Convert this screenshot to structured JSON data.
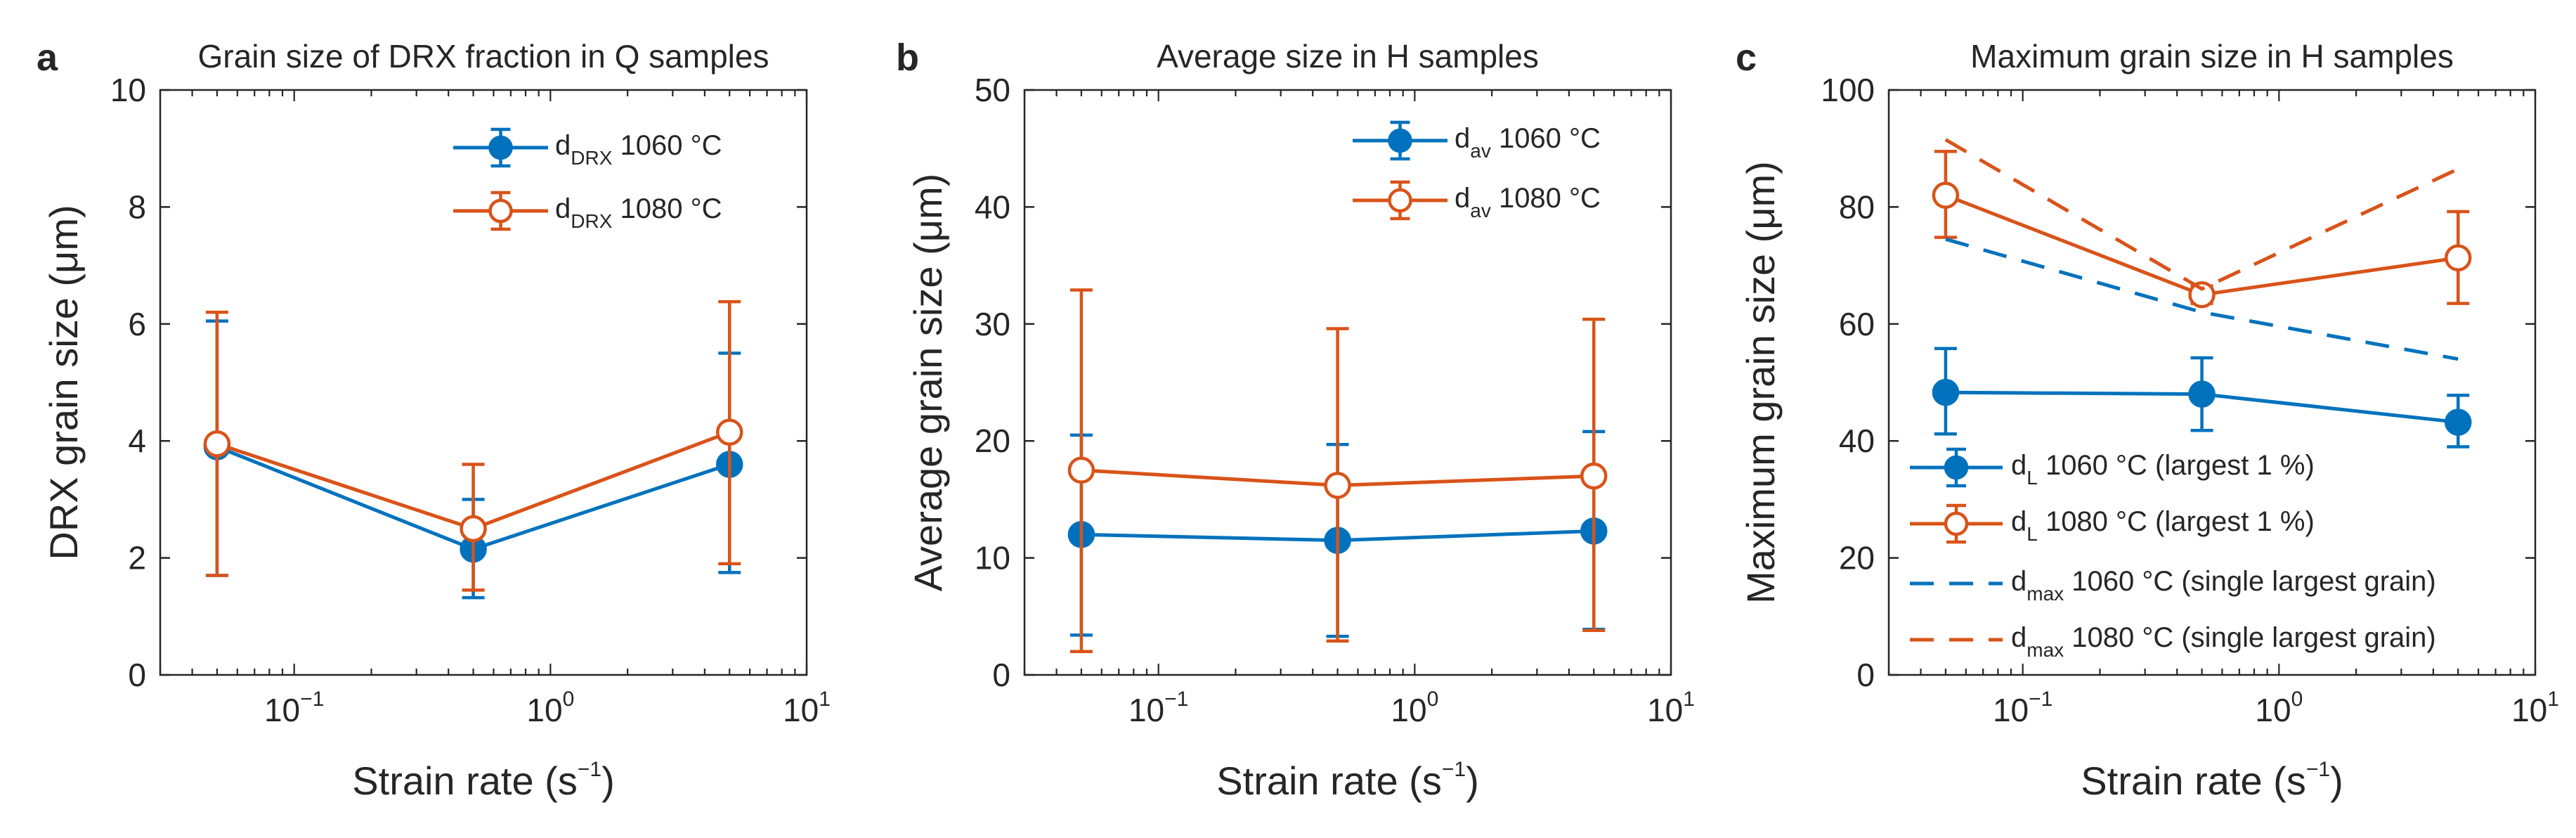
{
  "chart_data": [
    {
      "panel": "a",
      "type": "line",
      "title": "Grain size of DRX fraction in Q samples",
      "xlabel": "Strain rate (s⁻¹)",
      "xlabel_main": "Strain rate (s",
      "xlabel_exp": "−1",
      "xlabel_close": ")",
      "ylabel": "DRX grain size (μm)",
      "xscale": "log",
      "xlim": [
        0.03,
        10
      ],
      "ylim": [
        0,
        10
      ],
      "yticks": [
        0,
        2,
        4,
        6,
        8,
        10
      ],
      "ytick_labels": [
        "0",
        "2",
        "4",
        "6",
        "8",
        "10"
      ],
      "xticks": [
        0.1,
        1,
        10
      ],
      "xtick_labels": [
        {
          "base": "10",
          "exp": "−1"
        },
        {
          "base": "10",
          "exp": "0"
        },
        {
          "base": "10",
          "exp": "1"
        }
      ],
      "legend_position": "top-right",
      "series": [
        {
          "name": "dDRX 1060 °C",
          "label_main": "d",
          "label_sub": "DRX",
          "label_rest": " 1060 °C",
          "color": "#0072BD",
          "marker": "filled",
          "style": "solid",
          "x": [
            0.05,
            0.5,
            5
          ],
          "y": [
            3.9,
            2.15,
            3.6
          ],
          "err_low": [
            1.7,
            1.32,
            1.75
          ],
          "err_high": [
            6.05,
            3.0,
            5.5
          ]
        },
        {
          "name": "dDRX 1080 °C",
          "label_main": "d",
          "label_sub": "DRX",
          "label_rest": " 1080 °C",
          "color": "#D95319",
          "marker": "open",
          "style": "solid",
          "x": [
            0.05,
            0.5,
            5
          ],
          "y": [
            3.95,
            2.5,
            4.15
          ],
          "err_low": [
            1.7,
            1.45,
            1.9
          ],
          "err_high": [
            6.2,
            3.6,
            6.38
          ]
        }
      ]
    },
    {
      "panel": "b",
      "type": "line",
      "title": "Average size in H samples",
      "xlabel": "Strain rate (s⁻¹)",
      "xlabel_main": "Strain rate (s",
      "xlabel_exp": "−1",
      "xlabel_close": ")",
      "ylabel": "Average grain size (μm)",
      "xscale": "log",
      "xlim": [
        0.03,
        10
      ],
      "ylim": [
        0,
        50
      ],
      "yticks": [
        0,
        10,
        20,
        30,
        40,
        50
      ],
      "ytick_labels": [
        "0",
        "10",
        "20",
        "30",
        "40",
        "50"
      ],
      "xticks": [
        0.1,
        1,
        10
      ],
      "xtick_labels": [
        {
          "base": "10",
          "exp": "−1"
        },
        {
          "base": "10",
          "exp": "0"
        },
        {
          "base": "10",
          "exp": "1"
        }
      ],
      "legend_position": "top-right",
      "series": [
        {
          "name": "dav 1060 °C",
          "label_main": "d",
          "label_sub": "av",
          "label_rest": " 1060 °C",
          "color": "#0072BD",
          "marker": "filled",
          "style": "solid",
          "x": [
            0.05,
            0.5,
            5
          ],
          "y": [
            12.0,
            11.5,
            12.3
          ],
          "err_low": [
            3.4,
            3.3,
            3.9
          ],
          "err_high": [
            20.5,
            19.7,
            20.8
          ]
        },
        {
          "name": "dav 1080 °C",
          "label_main": "d",
          "label_sub": "av",
          "label_rest": " 1080 °C",
          "color": "#D95319",
          "marker": "open",
          "style": "solid",
          "x": [
            0.05,
            0.5,
            5
          ],
          "y": [
            17.5,
            16.2,
            17.0
          ],
          "err_low": [
            2.0,
            2.9,
            3.8
          ],
          "err_high": [
            32.9,
            29.6,
            30.4
          ]
        }
      ]
    },
    {
      "panel": "c",
      "type": "line",
      "title": "Maximum grain size in H samples",
      "xlabel": "Strain rate (s⁻¹)",
      "xlabel_main": "Strain rate (s",
      "xlabel_exp": "−1",
      "xlabel_close": ")",
      "ylabel": "Maximum grain size (μm)",
      "xscale": "log",
      "xlim": [
        0.03,
        10
      ],
      "ylim": [
        0,
        100
      ],
      "yticks": [
        0,
        20,
        40,
        60,
        80,
        100
      ],
      "ytick_labels": [
        "0",
        "20",
        "40",
        "60",
        "80",
        "100"
      ],
      "xticks": [
        0.1,
        1,
        10
      ],
      "xtick_labels": [
        {
          "base": "10",
          "exp": "−1"
        },
        {
          "base": "10",
          "exp": "0"
        },
        {
          "base": "10",
          "exp": "1"
        }
      ],
      "legend_position": "bottom-right",
      "series": [
        {
          "name": "dL 1060 °C (largest 1 %)",
          "label_main": "d",
          "label_sub": "L",
          "label_rest": " 1060 °C (largest 1 %)",
          "color": "#0072BD",
          "marker": "filled",
          "style": "solid",
          "x": [
            0.05,
            0.5,
            5
          ],
          "y": [
            48.3,
            48.0,
            43.2
          ],
          "err_low": [
            41.2,
            41.8,
            39.0
          ],
          "err_high": [
            55.8,
            54.2,
            47.8
          ]
        },
        {
          "name": "dL 1080 °C (largest 1 %)",
          "label_main": "d",
          "label_sub": "L",
          "label_rest": " 1080 °C  (largest 1 %)",
          "color": "#D95319",
          "marker": "open",
          "style": "solid",
          "x": [
            0.05,
            0.5,
            5
          ],
          "y": [
            82.0,
            65.0,
            71.3
          ],
          "err_low": [
            74.8,
            63.5,
            63.5
          ],
          "err_high": [
            89.5,
            66.5,
            79.2
          ]
        },
        {
          "name": "dmax 1060 °C (single largest grain)",
          "label_main": "d",
          "label_sub": "max",
          "label_rest": " 1060 °C  (single largest grain)",
          "color": "#0072BD",
          "marker": "none",
          "style": "dashed",
          "x": [
            0.05,
            0.5,
            5
          ],
          "y": [
            74.5,
            62.0,
            54.0
          ]
        },
        {
          "name": "dmax 1080 °C (single largest grain)",
          "label_main": "d",
          "label_sub": "max",
          "label_rest": " 1080 °C (single largest grain)",
          "color": "#D95319",
          "marker": "none",
          "style": "dashed",
          "x": [
            0.05,
            0.5,
            5
          ],
          "y": [
            91.5,
            66.0,
            86.5
          ]
        }
      ]
    }
  ]
}
